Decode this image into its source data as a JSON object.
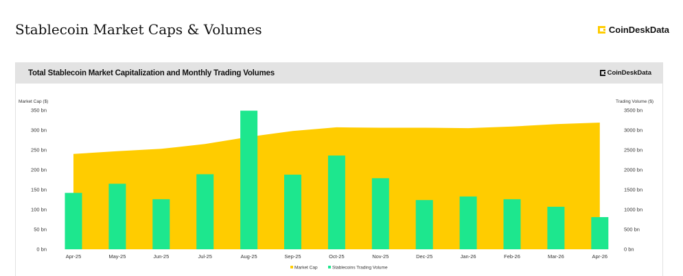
{
  "page": {
    "title": "Stablecoin Market Caps & Volumes",
    "brand": "CoinDeskData"
  },
  "card": {
    "title": "Total Stablecoin Market Capitalization and Monthly Trading Volumes",
    "brand": "CoinDeskData"
  },
  "chart_data": {
    "type": "bar",
    "title": "Total Stablecoin Market Capitalization and Monthly Trading Volumes",
    "categories": [
      "Apr-25",
      "May-25",
      "Jun-25",
      "Jul-25",
      "Aug-25",
      "Sep-25",
      "Oct-25",
      "Nov-25",
      "Dec-25",
      "Jan-26",
      "Feb-26",
      "Mar-26",
      "Apr-26"
    ],
    "ylabel_left": "Market Cap ($)",
    "ylabel_right": "Trading Volume ($)",
    "left_ticks": [
      "0 bn",
      "50 bn",
      "100 bn",
      "150 bn",
      "200 bn",
      "250 bn",
      "300 bn",
      "350 bn"
    ],
    "right_ticks": [
      "0 bn",
      "500 bn",
      "1000 bn",
      "1500 bn",
      "2000 bn",
      "2500 bn",
      "3000 bn",
      "3500 bn"
    ],
    "ylim_left": [
      0,
      350
    ],
    "ylim_right": [
      0,
      3500
    ],
    "series": [
      {
        "name": "Market Cap",
        "type": "area",
        "axis": "left",
        "color": "#ffcc00",
        "values": [
          240,
          247,
          253,
          265,
          283,
          298,
          307,
          306,
          306,
          305,
          309,
          315,
          319
        ]
      },
      {
        "name": "Stablecoins Trading Volume",
        "type": "bar",
        "axis": "right",
        "color": "#1de78e",
        "values": [
          1420,
          1650,
          1260,
          1890,
          3490,
          1880,
          2360,
          1790,
          1240,
          1330,
          1260,
          1070,
          810
        ]
      }
    ],
    "legend_position": "bottom",
    "grid": false
  }
}
